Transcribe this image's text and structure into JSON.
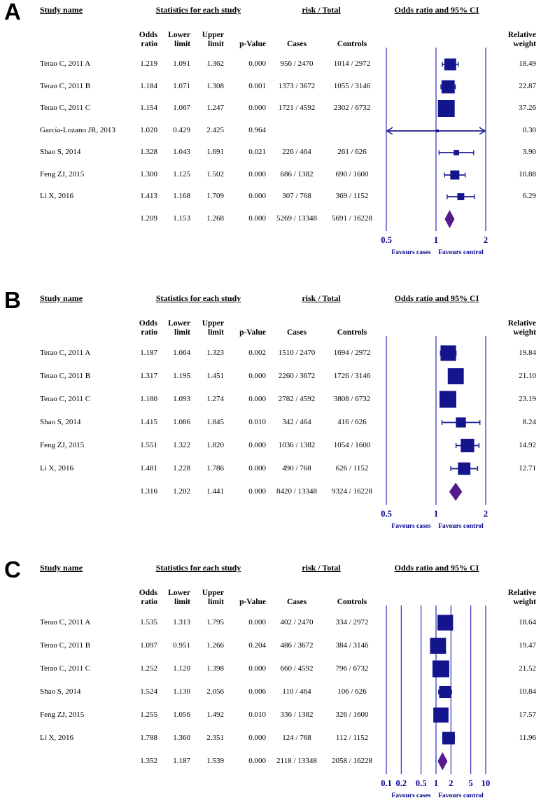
{
  "shared": {
    "colors": {
      "marker": "#14148c",
      "ci_line": "#1c1c96",
      "grid_line": "#3c3cbd",
      "diamond": "#551a8b",
      "axis_text": "#00008b"
    },
    "headers": {
      "study_name": "Study name",
      "stats_group": "Statistics for each study",
      "risk_group": "risk / Total",
      "plot_group": "Odds ratio and 95% CI",
      "col_odds": [
        "Odds",
        "ratio"
      ],
      "col_lower": [
        "Lower",
        "limit"
      ],
      "col_upper": [
        "Upper",
        "limit"
      ],
      "col_p": "p-Value",
      "col_cases": "Cases",
      "col_controls": "Controls",
      "col_weight": [
        "Relative",
        "weight"
      ]
    }
  },
  "chart_data": [
    {
      "type": "scatter",
      "subtype": "forest_plot",
      "label": "A",
      "title": "Odds ratio and 95% CI",
      "axis": {
        "scale": "log",
        "ticks": [
          0.5,
          1,
          2
        ],
        "tick_labels": [
          "0.5",
          "1",
          "2"
        ]
      },
      "favours": {
        "left": "Favours cases",
        "right": "Favours control"
      },
      "rows": [
        {
          "study": "Terao C, 2011 A",
          "or": "1.219",
          "lower": "1.091",
          "upper": "1.362",
          "p": "0.000",
          "cases": "956 / 2470",
          "controls": "1014 / 2972",
          "weight": "18.49"
        },
        {
          "study": "Terao C, 2011 B",
          "or": "1.184",
          "lower": "1.071",
          "upper": "1.308",
          "p": "0.001",
          "cases": "1373 / 3672",
          "controls": "1055 / 3146",
          "weight": "22.87"
        },
        {
          "study": "Terao C, 2011 C",
          "or": "1.154",
          "lower": "1.067",
          "upper": "1.247",
          "p": "0.000",
          "cases": "1721 / 4592",
          "controls": "2302 / 6732",
          "weight": "37.26"
        },
        {
          "study": "García-Lozano JR, 2013",
          "or": "1.020",
          "lower": "0.429",
          "upper": "2.425",
          "p": "0.964",
          "cases": "",
          "controls": "",
          "weight": "0.30"
        },
        {
          "study": "Shao S, 2014",
          "or": "1.328",
          "lower": "1.043",
          "upper": "1.691",
          "p": "0.021",
          "cases": "226 / 464",
          "controls": "261 / 626",
          "weight": "3.90"
        },
        {
          "study": "Feng ZJ, 2015",
          "or": "1.300",
          "lower": "1.125",
          "upper": "1.502",
          "p": "0.000",
          "cases": "686 / 1382",
          "controls": "690 / 1600",
          "weight": "10.88"
        },
        {
          "study": "Li X, 2016",
          "or": "1.413",
          "lower": "1.168",
          "upper": "1.709",
          "p": "0.000",
          "cases": "307 / 768",
          "controls": "369 / 1152",
          "weight": "6.29"
        }
      ],
      "summary": {
        "or": "1.209",
        "lower": "1.153",
        "upper": "1.268",
        "p": "0.000",
        "cases": "5269 / 13348",
        "controls": "5691 / 16228"
      }
    },
    {
      "type": "scatter",
      "subtype": "forest_plot",
      "label": "B",
      "title": "Odds ratio and 95% CI",
      "axis": {
        "scale": "log",
        "ticks": [
          0.5,
          1,
          2
        ],
        "tick_labels": [
          "0.5",
          "1",
          "2"
        ]
      },
      "favours": {
        "left": "Favours cases",
        "right": "Favours control"
      },
      "rows": [
        {
          "study": "Terao C, 2011 A",
          "or": "1.187",
          "lower": "1.064",
          "upper": "1.323",
          "p": "0.002",
          "cases": "1510 / 2470",
          "controls": "1694 / 2972",
          "weight": "19.84"
        },
        {
          "study": "Terao C, 2011 B",
          "or": "1.317",
          "lower": "1.195",
          "upper": "1.451",
          "p": "0.000",
          "cases": "2260 / 3672",
          "controls": "1726 / 3146",
          "weight": "21.10"
        },
        {
          "study": "Terao C, 2011 C",
          "or": "1.180",
          "lower": "1.093",
          "upper": "1.274",
          "p": "0.000",
          "cases": "2782 / 4592",
          "controls": "3808 / 6732",
          "weight": "23.19"
        },
        {
          "study": "Shao S, 2014",
          "or": "1.415",
          "lower": "1.086",
          "upper": "1.845",
          "p": "0.010",
          "cases": "342 / 464",
          "controls": "416 / 626",
          "weight": "8.24"
        },
        {
          "study": "Feng ZJ, 2015",
          "or": "1.551",
          "lower": "1.322",
          "upper": "1.820",
          "p": "0.000",
          "cases": "1036 / 1382",
          "controls": "1054 / 1600",
          "weight": "14.92"
        },
        {
          "study": "Li X, 2016",
          "or": "1.481",
          "lower": "1.228",
          "upper": "1.786",
          "p": "0.000",
          "cases": "490 / 768",
          "controls": "626 / 1152",
          "weight": "12.71"
        }
      ],
      "summary": {
        "or": "1.316",
        "lower": "1.202",
        "upper": "1.441",
        "p": "0.000",
        "cases": "8420 / 13348",
        "controls": "9324 / 16228"
      }
    },
    {
      "type": "scatter",
      "subtype": "forest_plot",
      "label": "C",
      "title": "Odds ratio and 95% CI",
      "axis": {
        "scale": "log",
        "ticks": [
          0.1,
          0.2,
          0.5,
          1,
          2,
          5,
          10
        ],
        "tick_labels": [
          "0.1",
          "0.2",
          "0.5",
          "1",
          "2",
          "5",
          "10"
        ]
      },
      "favours": {
        "left": "Favours cases",
        "right": "Favours control"
      },
      "rows": [
        {
          "study": "Terao C, 2011 A",
          "or": "1.535",
          "lower": "1.313",
          "upper": "1.795",
          "p": "0.000",
          "cases": "402 / 2470",
          "controls": "334 / 2972",
          "weight": "18.64"
        },
        {
          "study": "Terao C, 2011 B",
          "or": "1.097",
          "lower": "0.951",
          "upper": "1.266",
          "p": "0.204",
          "cases": "486 / 3672",
          "controls": "384 / 3146",
          "weight": "19.47"
        },
        {
          "study": "Terao C, 2011 C",
          "or": "1.252",
          "lower": "1.120",
          "upper": "1.398",
          "p": "0.000",
          "cases": "660 / 4592",
          "controls": "796 / 6732",
          "weight": "21.52"
        },
        {
          "study": "Shao S, 2014",
          "or": "1.524",
          "lower": "1.130",
          "upper": "2.056",
          "p": "0.006",
          "cases": "110 / 464",
          "controls": "106 / 626",
          "weight": "10.84"
        },
        {
          "study": "Feng ZJ, 2015",
          "or": "1.255",
          "lower": "1.056",
          "upper": "1.492",
          "p": "0.010",
          "cases": "336 / 1382",
          "controls": "326 / 1600",
          "weight": "17.57"
        },
        {
          "study": "Li X, 2016",
          "or": "1.788",
          "lower": "1.360",
          "upper": "2.351",
          "p": "0.000",
          "cases": "124 / 768",
          "controls": "112 / 1152",
          "weight": "11.96"
        }
      ],
      "summary": {
        "or": "1.352",
        "lower": "1.187",
        "upper": "1.539",
        "p": "0.000",
        "cases": "2118 / 13348",
        "controls": "2058 / 16228"
      }
    }
  ]
}
